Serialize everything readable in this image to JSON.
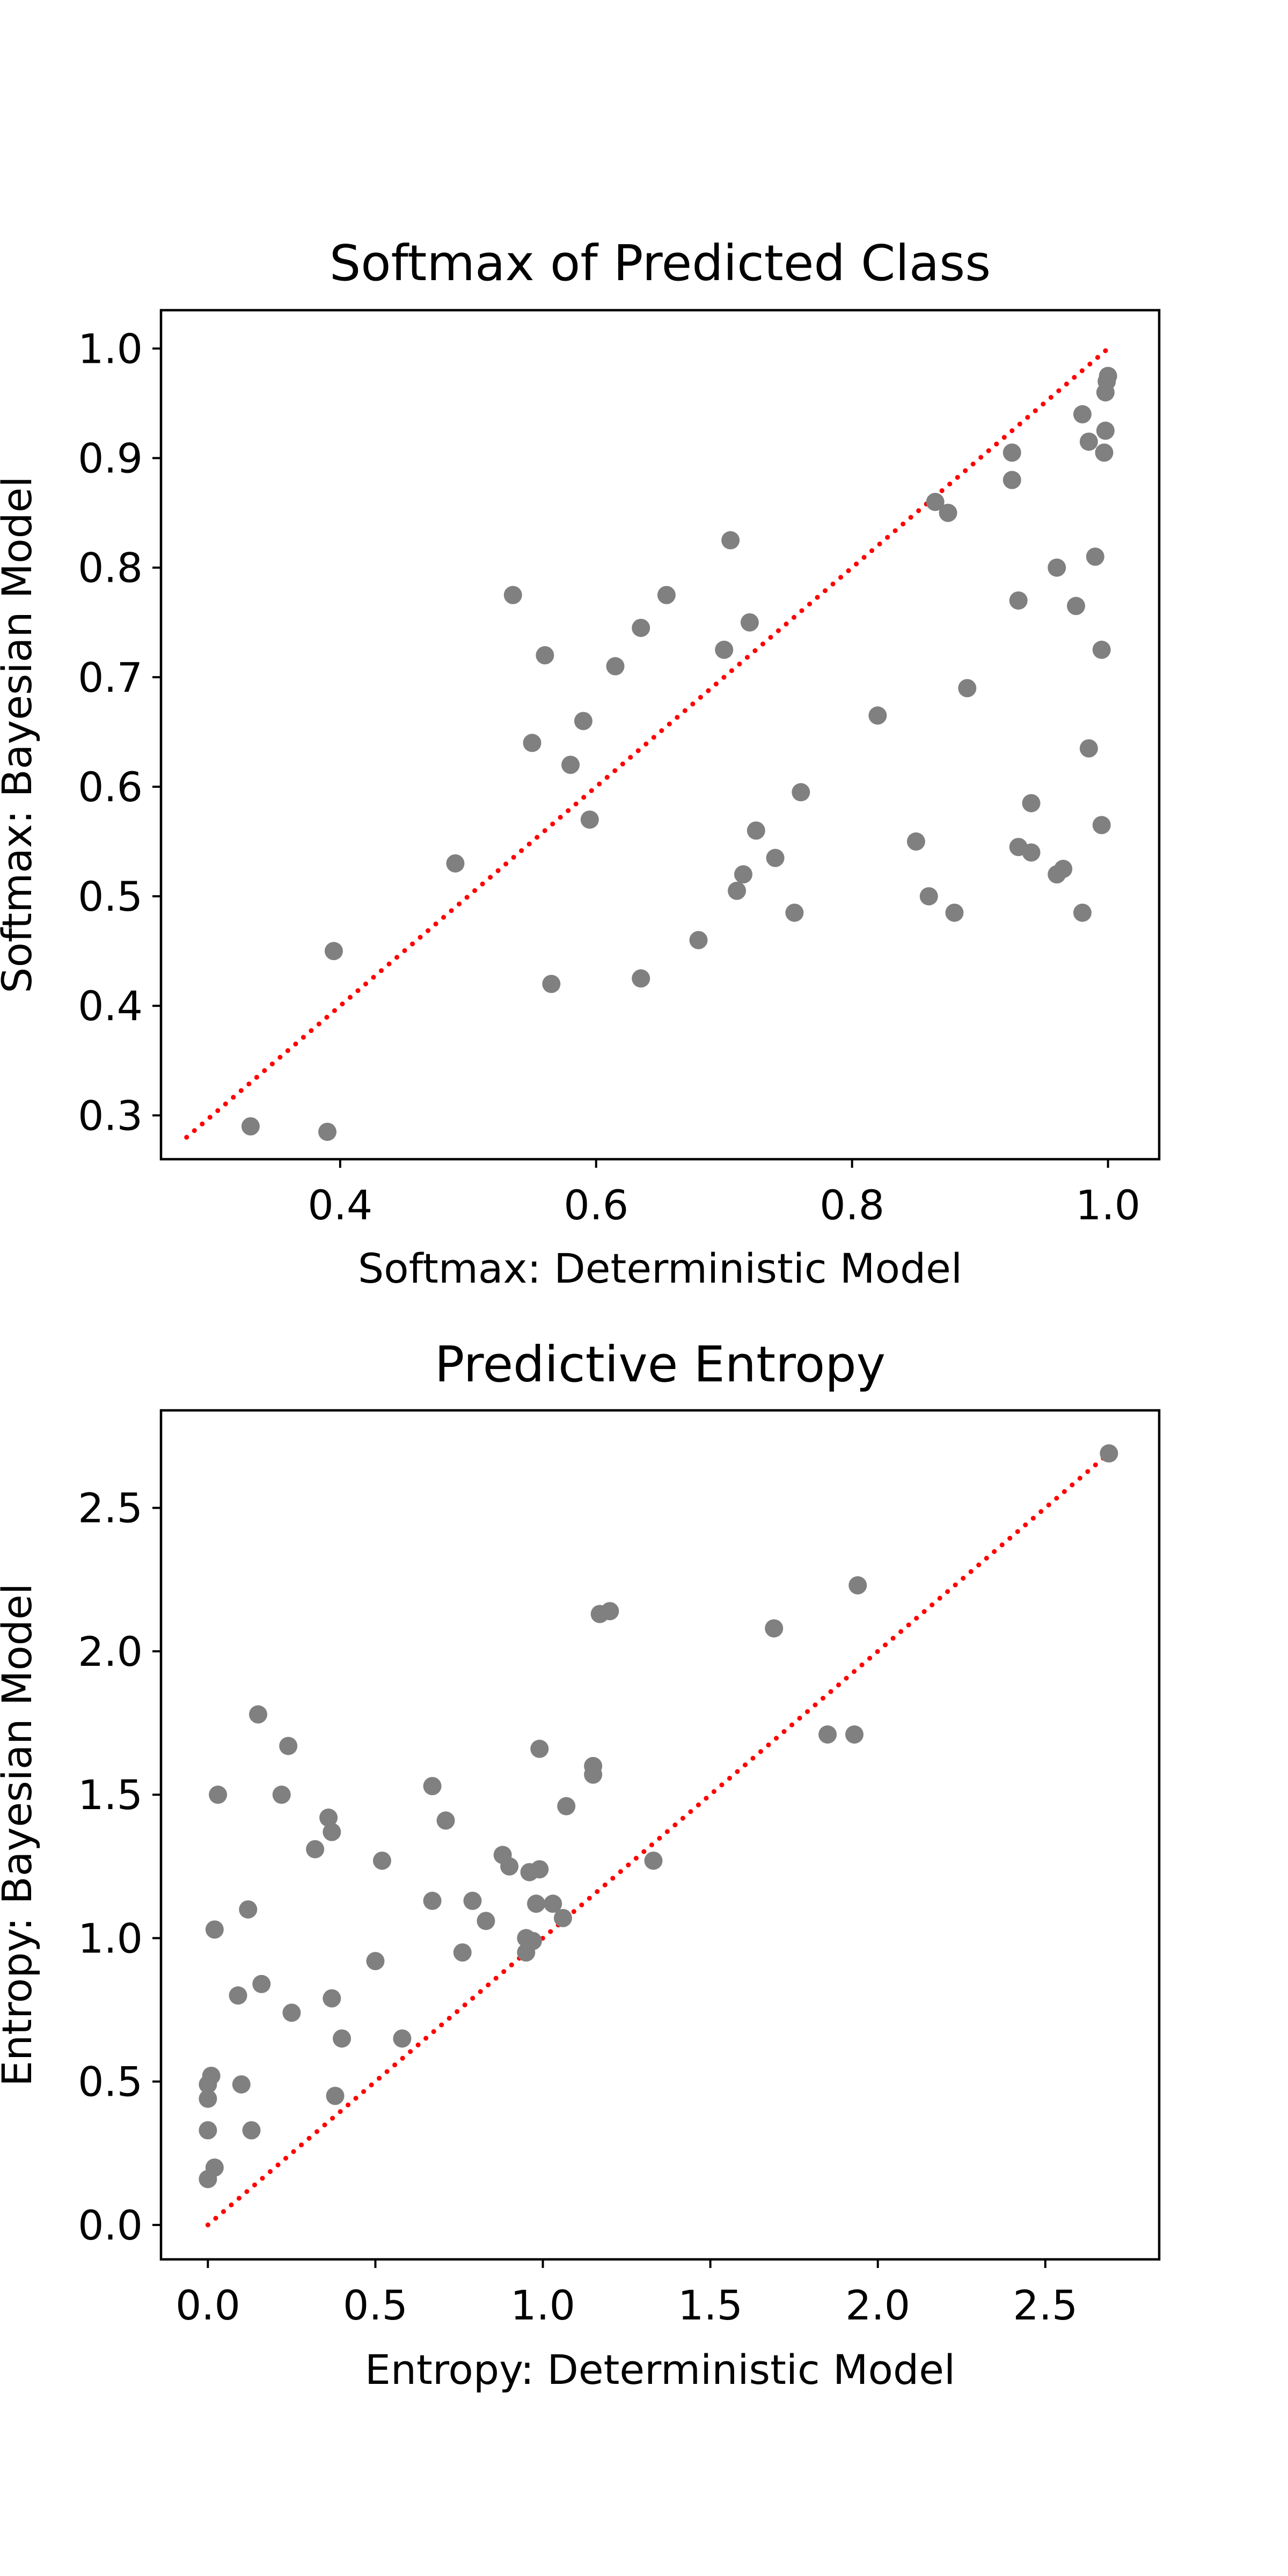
{
  "chart_data": [
    {
      "type": "scatter",
      "title": "Softmax of Predicted Class",
      "xlabel": "Softmax: Deterministic Model",
      "ylabel": "Softmax: Bayesian Model",
      "xlim": [
        0.26,
        1.04
      ],
      "ylim": [
        0.26,
        1.035
      ],
      "xticks": [
        "0.4",
        "0.6",
        "0.8",
        "1.0"
      ],
      "yticks": [
        "0.3",
        "0.4",
        "0.5",
        "0.6",
        "0.7",
        "0.8",
        "0.9",
        "1.0"
      ],
      "grid": false,
      "marker_color": "#808080",
      "diagonal": {
        "x": [
          0.28,
          1.0
        ],
        "y": [
          0.28,
          1.0
        ],
        "style": "dotted",
        "color": "#ff0000"
      },
      "points": [
        [
          0.33,
          0.29
        ],
        [
          0.39,
          0.285
        ],
        [
          0.395,
          0.45
        ],
        [
          0.49,
          0.53
        ],
        [
          0.535,
          0.775
        ],
        [
          0.55,
          0.64
        ],
        [
          0.56,
          0.72
        ],
        [
          0.565,
          0.42
        ],
        [
          0.58,
          0.62
        ],
        [
          0.59,
          0.66
        ],
        [
          0.595,
          0.57
        ],
        [
          0.615,
          0.71
        ],
        [
          0.635,
          0.745
        ],
        [
          0.635,
          0.425
        ],
        [
          0.655,
          0.775
        ],
        [
          0.68,
          0.46
        ],
        [
          0.7,
          0.725
        ],
        [
          0.705,
          0.825
        ],
        [
          0.71,
          0.505
        ],
        [
          0.715,
          0.52
        ],
        [
          0.72,
          0.75
        ],
        [
          0.725,
          0.56
        ],
        [
          0.74,
          0.535
        ],
        [
          0.755,
          0.485
        ],
        [
          0.76,
          0.595
        ],
        [
          0.82,
          0.665
        ],
        [
          0.85,
          0.55
        ],
        [
          0.86,
          0.5
        ],
        [
          0.865,
          0.86
        ],
        [
          0.875,
          0.85
        ],
        [
          0.88,
          0.485
        ],
        [
          0.89,
          0.69
        ],
        [
          0.925,
          0.905
        ],
        [
          0.925,
          0.88
        ],
        [
          0.93,
          0.77
        ],
        [
          0.93,
          0.545
        ],
        [
          0.94,
          0.54
        ],
        [
          0.94,
          0.585
        ],
        [
          0.96,
          0.8
        ],
        [
          0.96,
          0.52
        ],
        [
          0.965,
          0.525
        ],
        [
          0.975,
          0.765
        ],
        [
          0.98,
          0.94
        ],
        [
          0.98,
          0.485
        ],
        [
          0.985,
          0.635
        ],
        [
          0.985,
          0.915
        ],
        [
          0.99,
          0.81
        ],
        [
          0.995,
          0.725
        ],
        [
          0.995,
          0.565
        ],
        [
          0.997,
          0.905
        ],
        [
          0.998,
          0.925
        ],
        [
          0.998,
          0.96
        ],
        [
          0.999,
          0.97
        ],
        [
          1.0,
          0.975
        ]
      ]
    },
    {
      "type": "scatter",
      "title": "Predictive Entropy",
      "xlabel": "Entropy: Deterministic Model",
      "ylabel": "Entropy: Bayesian Model",
      "xlim": [
        -0.14,
        2.84
      ],
      "ylim": [
        -0.12,
        2.84
      ],
      "xticks": [
        "0.0",
        "0.5",
        "1.0",
        "1.5",
        "2.0",
        "2.5"
      ],
      "yticks": [
        "0.0",
        "0.5",
        "1.0",
        "1.5",
        "2.0",
        "2.5"
      ],
      "grid": false,
      "marker_color": "#808080",
      "diagonal": {
        "x": [
          0.0,
          2.69
        ],
        "y": [
          0.0,
          2.69
        ],
        "style": "dotted",
        "color": "#ff0000"
      },
      "points": [
        [
          0.0,
          0.16
        ],
        [
          0.0,
          0.33
        ],
        [
          0.0,
          0.44
        ],
        [
          0.0,
          0.49
        ],
        [
          0.01,
          0.52
        ],
        [
          0.02,
          0.2
        ],
        [
          0.02,
          1.03
        ],
        [
          0.03,
          1.5
        ],
        [
          0.09,
          0.8
        ],
        [
          0.1,
          0.49
        ],
        [
          0.12,
          1.1
        ],
        [
          0.13,
          0.33
        ],
        [
          0.15,
          1.78
        ],
        [
          0.16,
          0.84
        ],
        [
          0.22,
          1.5
        ],
        [
          0.24,
          1.67
        ],
        [
          0.25,
          0.74
        ],
        [
          0.32,
          1.31
        ],
        [
          0.36,
          1.42
        ],
        [
          0.37,
          1.37
        ],
        [
          0.37,
          0.79
        ],
        [
          0.38,
          0.45
        ],
        [
          0.4,
          0.65
        ],
        [
          0.5,
          0.92
        ],
        [
          0.52,
          1.27
        ],
        [
          0.58,
          0.65
        ],
        [
          0.67,
          1.53
        ],
        [
          0.67,
          1.13
        ],
        [
          0.71,
          1.41
        ],
        [
          0.76,
          0.95
        ],
        [
          0.79,
          1.13
        ],
        [
          0.83,
          1.06
        ],
        [
          0.88,
          1.29
        ],
        [
          0.9,
          1.25
        ],
        [
          0.95,
          0.95
        ],
        [
          0.95,
          1.0
        ],
        [
          0.96,
          1.23
        ],
        [
          0.97,
          0.99
        ],
        [
          0.98,
          1.12
        ],
        [
          0.99,
          1.24
        ],
        [
          0.99,
          1.66
        ],
        [
          1.03,
          1.12
        ],
        [
          1.06,
          1.07
        ],
        [
          1.07,
          1.46
        ],
        [
          1.15,
          1.6
        ],
        [
          1.15,
          1.57
        ],
        [
          1.17,
          2.13
        ],
        [
          1.2,
          2.14
        ],
        [
          1.33,
          1.27
        ],
        [
          1.69,
          2.08
        ],
        [
          1.85,
          1.71
        ],
        [
          1.93,
          1.71
        ],
        [
          1.94,
          2.23
        ],
        [
          2.69,
          2.69
        ]
      ]
    }
  ]
}
